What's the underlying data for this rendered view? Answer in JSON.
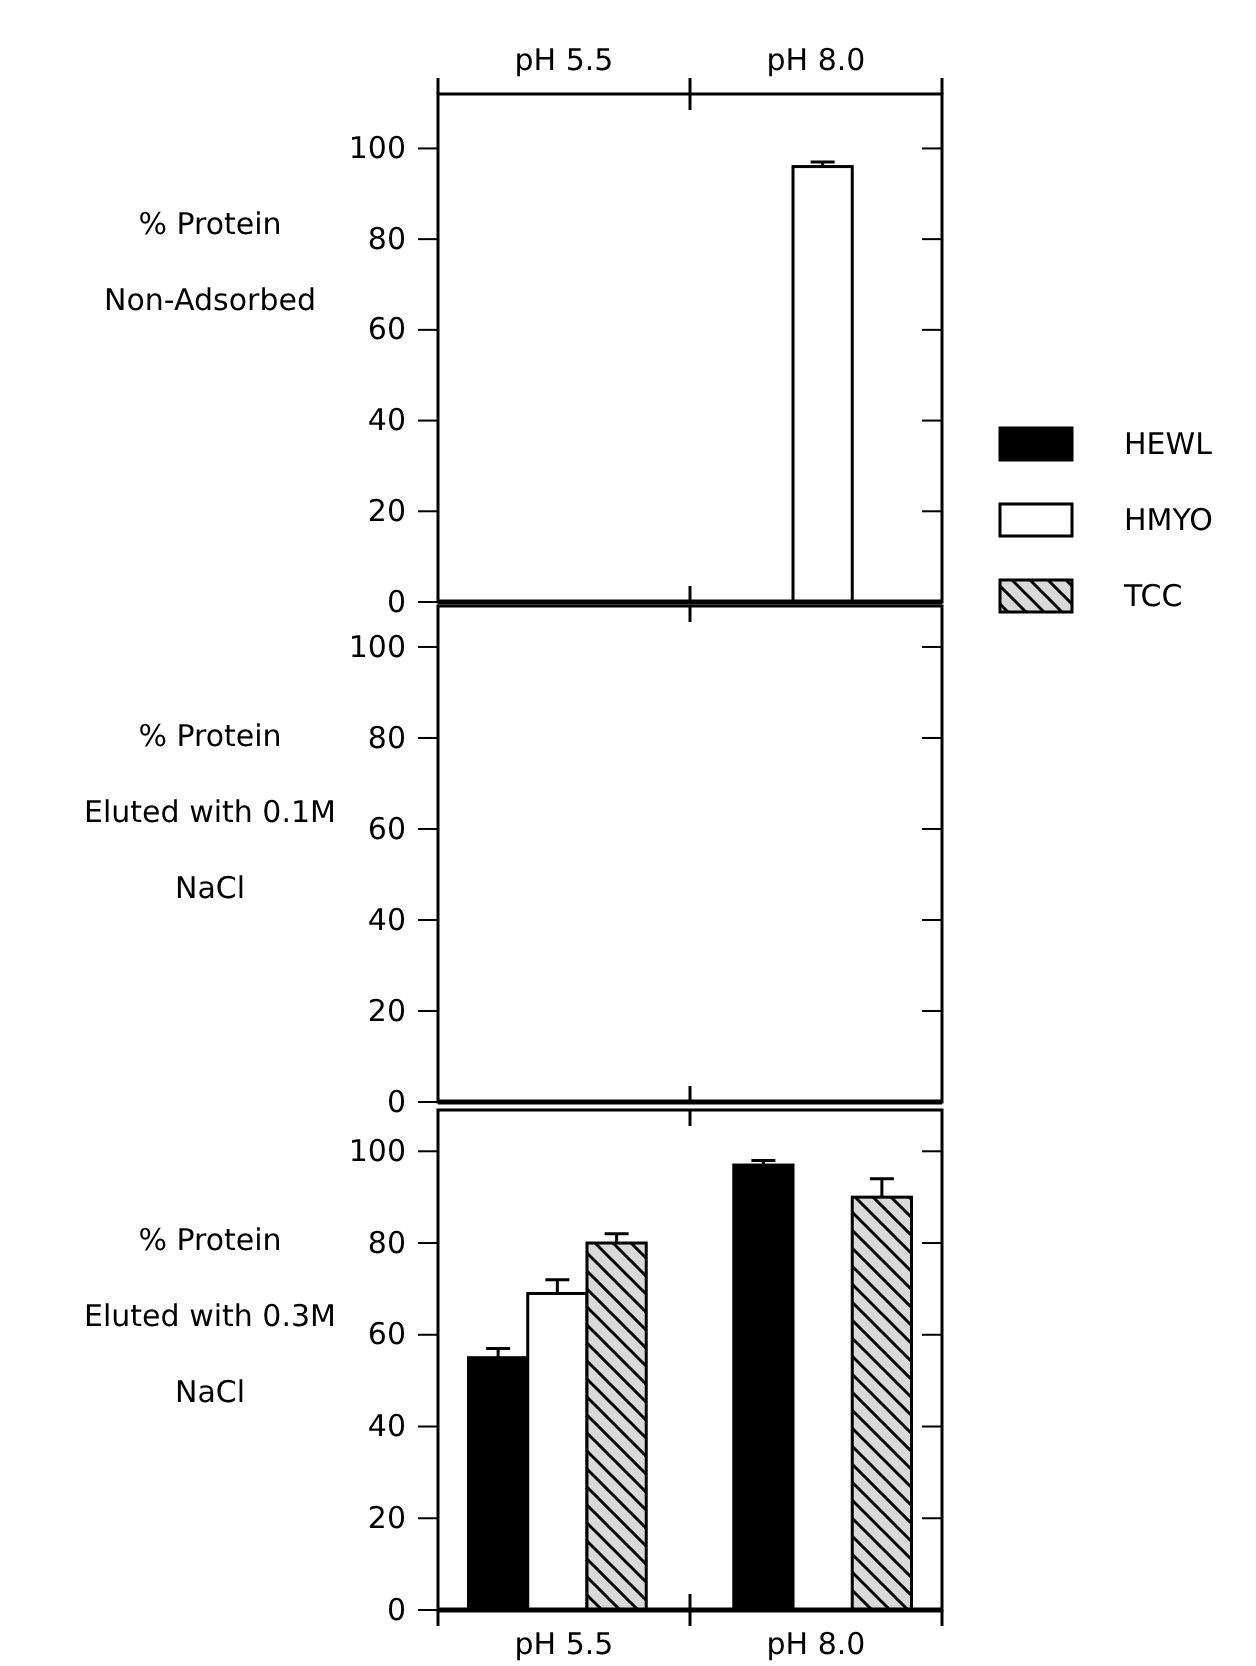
{
  "chart_data": [
    {
      "type": "bar",
      "ylabel": "% Protein\nNon-Adsorbed",
      "categories": [
        "pH 5.5",
        "pH 8.0"
      ],
      "ylim": [
        0,
        112
      ],
      "yticks": [
        0,
        20,
        40,
        60,
        80,
        100
      ],
      "legend": "right",
      "series": [
        {
          "name": "HEWL",
          "color": "#000000",
          "values": [
            0,
            0
          ]
        },
        {
          "name": "HMYO",
          "color": "#ffffff",
          "values": [
            0,
            96
          ],
          "errors": [
            null,
            1
          ]
        },
        {
          "name": "TCC",
          "color": "#d9d9d9",
          "values": [
            0,
            0
          ]
        }
      ]
    },
    {
      "type": "bar",
      "ylabel": "% Protein\nEluted with 0.1M\nNaCl",
      "ylim": [
        0,
        109
      ],
      "yticks": [
        0,
        20,
        40,
        60,
        80,
        100
      ],
      "tick_labels": "y",
      "series": [
        {
          "values": [
            0,
            0
          ]
        },
        {
          "values": [
            0,
            0
          ]
        },
        {
          "values": [
            0,
            0
          ]
        }
      ]
    },
    {
      "type": "bar",
      "ylabel": "% Protein\nEluted with 0.3M\nNaCl",
      "categories": [
        "pH 5.5",
        "pH 8.0"
      ],
      "ylim": [
        0,
        109
      ],
      "yticks": [
        0,
        20,
        40,
        60,
        80,
        100
      ],
      "series": [
        {
          "color": "#000000",
          "values": [
            55,
            97
          ],
          "errors": [
            2,
            1
          ]
        },
        {
          "color": "#ffffff",
          "values": [
            69,
            0
          ],
          "errors": [
            3,
            null
          ]
        },
        {
          "color": "#d9d9d9",
          "values": [
            80,
            90
          ],
          "errors": [
            2,
            4
          ]
        }
      ]
    }
  ]
}
